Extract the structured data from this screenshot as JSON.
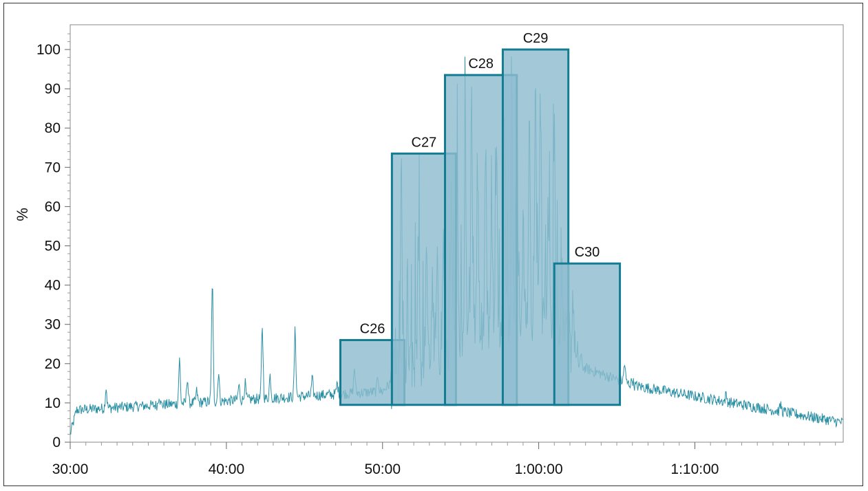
{
  "chart_data": {
    "type": "area",
    "title": "",
    "xlabel": "",
    "ylabel": "%",
    "xlim_minutes": [
      30,
      79.5
    ],
    "ylim": [
      0,
      105
    ],
    "x_ticks": [
      {
        "value": 30,
        "label": "30:00"
      },
      {
        "value": 40,
        "label": "40:00"
      },
      {
        "value": 50,
        "label": "50:00"
      },
      {
        "value": 60,
        "label": "1:00:00"
      },
      {
        "value": 70,
        "label": "1:10:00"
      }
    ],
    "y_ticks": [
      0,
      10,
      20,
      30,
      40,
      50,
      60,
      70,
      80,
      90,
      100
    ],
    "colors": {
      "trace": "#2a8fa3",
      "box_fill": "#8fbdd0",
      "box_stroke": "#137b92",
      "overlap_fill": "#4f99b2"
    },
    "fractions": [
      {
        "label": "C26",
        "start": 47.3,
        "end": 51.4,
        "value": 26
      },
      {
        "label": "C27",
        "start": 50.6,
        "end": 54.7,
        "value": 73.5
      },
      {
        "label": "C28",
        "start": 54.0,
        "end": 58.6,
        "value": 93.5
      },
      {
        "label": "C29",
        "start": 57.7,
        "end": 61.9,
        "value": 100
      },
      {
        "label": "C30",
        "start": 61.0,
        "end": 65.2,
        "value": 45.5
      }
    ],
    "peaks": [
      {
        "x": 30.2,
        "y": 1.5
      },
      {
        "x": 32.3,
        "y": 14
      },
      {
        "x": 35.7,
        "y": 12
      },
      {
        "x": 37.0,
        "y": 21
      },
      {
        "x": 37.5,
        "y": 16.5
      },
      {
        "x": 38.1,
        "y": 13
      },
      {
        "x": 39.1,
        "y": 41
      },
      {
        "x": 39.5,
        "y": 18
      },
      {
        "x": 40.8,
        "y": 14.5
      },
      {
        "x": 41.2,
        "y": 15
      },
      {
        "x": 42.3,
        "y": 29.5
      },
      {
        "x": 42.8,
        "y": 17
      },
      {
        "x": 44.4,
        "y": 28.5
      },
      {
        "x": 45.5,
        "y": 16
      },
      {
        "x": 47.1,
        "y": 15
      },
      {
        "x": 48.2,
        "y": 19
      },
      {
        "x": 49.7,
        "y": 17
      },
      {
        "x": 50.8,
        "y": 22
      },
      {
        "x": 51.2,
        "y": 69
      },
      {
        "x": 51.6,
        "y": 28
      },
      {
        "x": 52.3,
        "y": 53
      },
      {
        "x": 52.8,
        "y": 45
      },
      {
        "x": 53.2,
        "y": 40
      },
      {
        "x": 53.5,
        "y": 44
      },
      {
        "x": 53.9,
        "y": 52
      },
      {
        "x": 54.4,
        "y": 61
      },
      {
        "x": 54.8,
        "y": 58
      },
      {
        "x": 55.3,
        "y": 78
      },
      {
        "x": 55.7,
        "y": 91
      },
      {
        "x": 56.1,
        "y": 70
      },
      {
        "x": 56.6,
        "y": 77
      },
      {
        "x": 57.0,
        "y": 60
      },
      {
        "x": 57.3,
        "y": 72
      },
      {
        "x": 57.8,
        "y": 89
      },
      {
        "x": 58.3,
        "y": 85
      },
      {
        "x": 58.6,
        "y": 82
      },
      {
        "x": 59.0,
        "y": 55
      },
      {
        "x": 59.4,
        "y": 83
      },
      {
        "x": 59.8,
        "y": 93
      },
      {
        "x": 60.1,
        "y": 88
      },
      {
        "x": 60.6,
        "y": 60
      },
      {
        "x": 61.0,
        "y": 84
      },
      {
        "x": 61.5,
        "y": 42
      },
      {
        "x": 62.2,
        "y": 39
      },
      {
        "x": 62.7,
        "y": 22
      },
      {
        "x": 64.3,
        "y": 17
      },
      {
        "x": 65.5,
        "y": 20
      },
      {
        "x": 66.0,
        "y": 16
      },
      {
        "x": 72.0,
        "y": 12
      },
      {
        "x": 75.5,
        "y": 9.5
      }
    ]
  }
}
